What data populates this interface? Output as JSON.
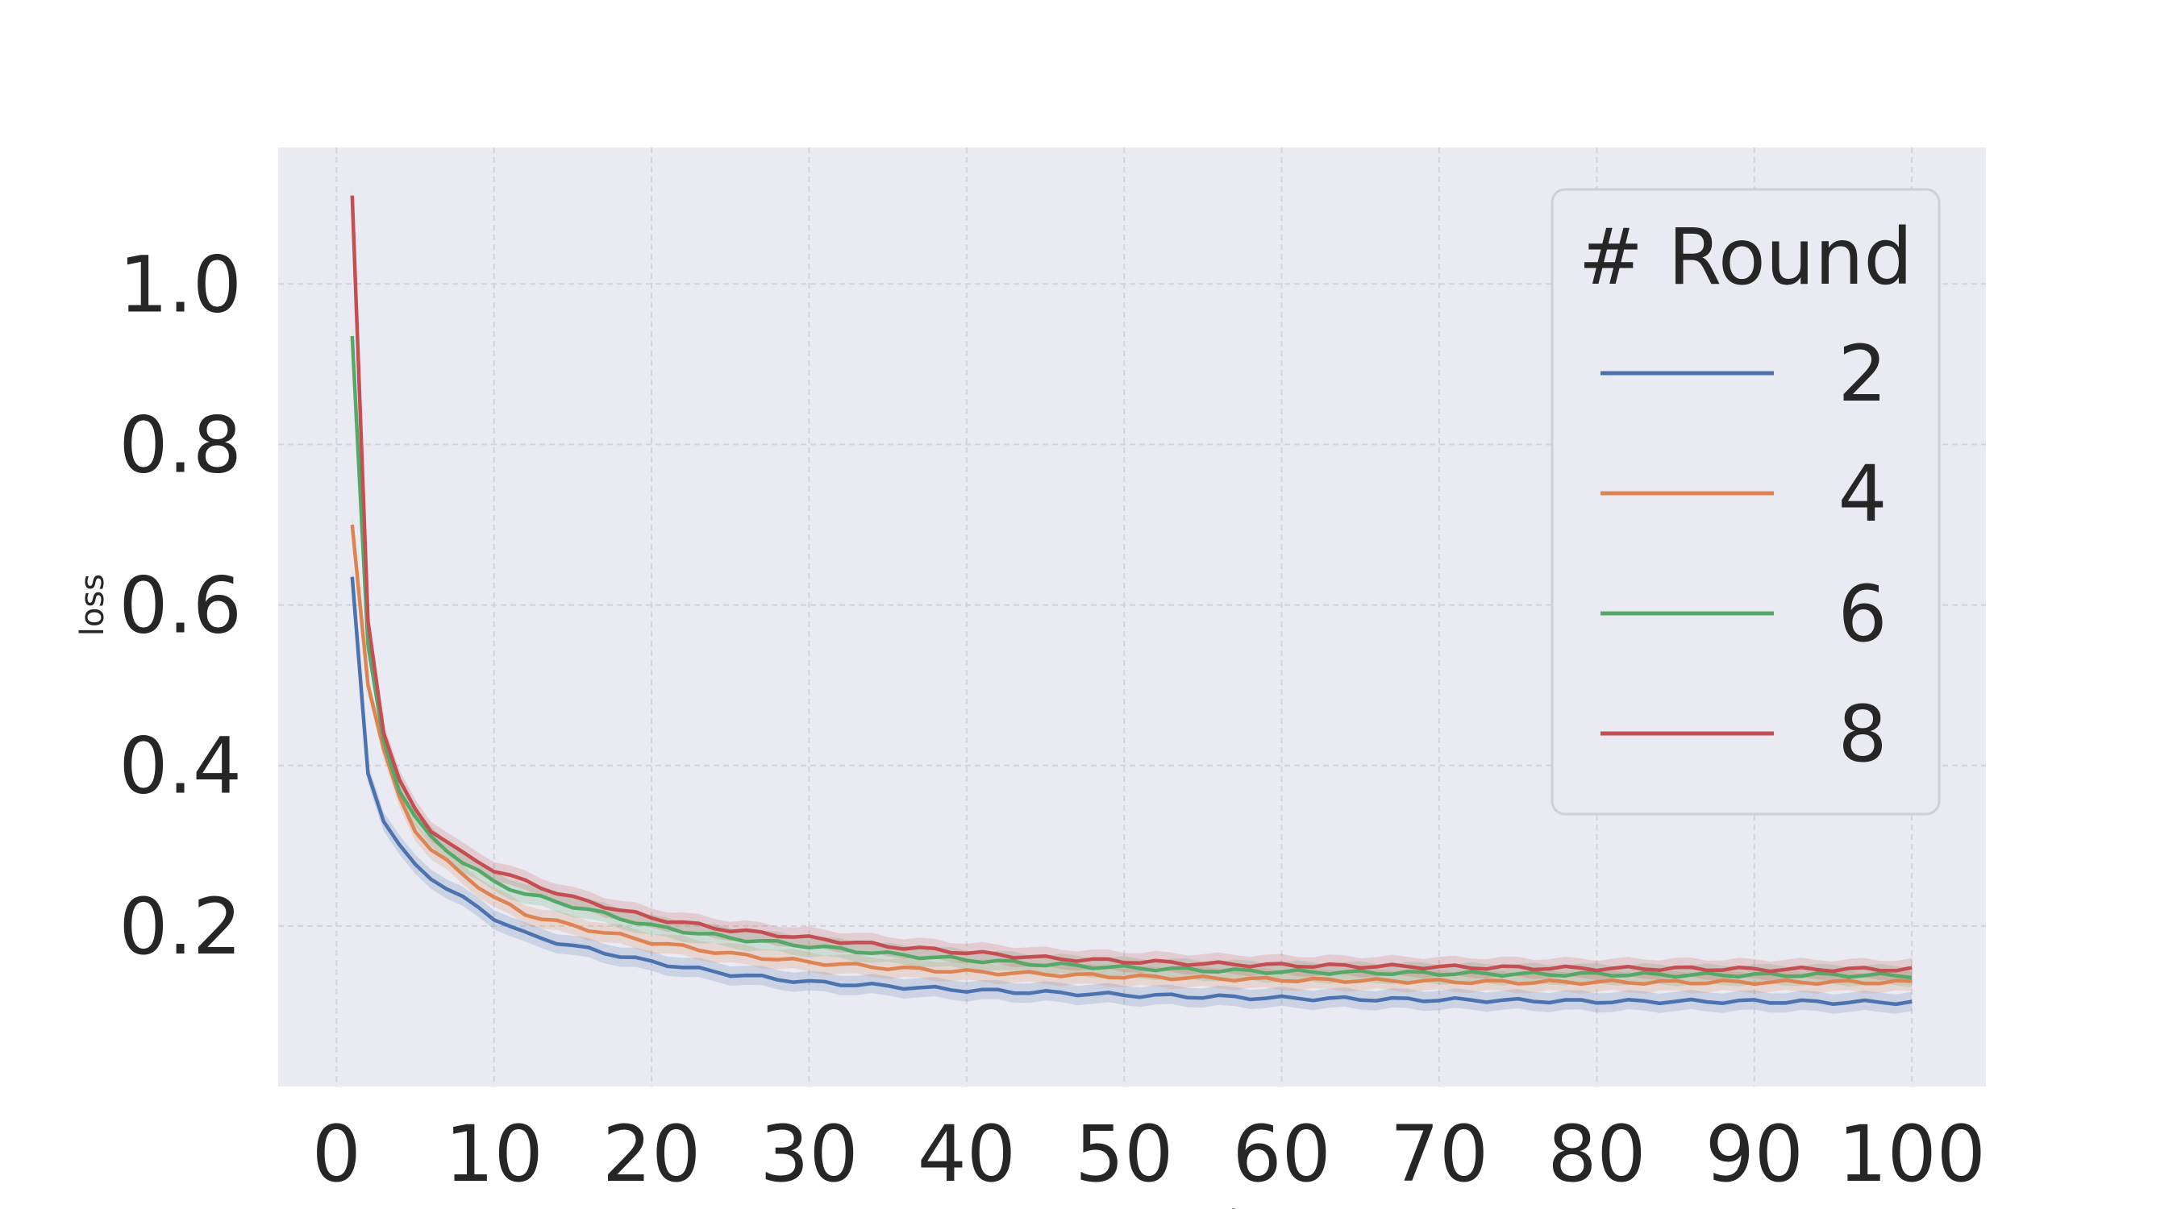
{
  "chart_data": {
    "type": "line",
    "title": "",
    "xlabel": "server_round",
    "ylabel": "loss",
    "xlim": [
      -3.7,
      104.7
    ],
    "ylim": [
      0.0,
      1.17
    ],
    "xticks": [
      0,
      10,
      20,
      30,
      40,
      50,
      60,
      70,
      80,
      90,
      100
    ],
    "xtick_labels": [
      "0",
      "10",
      "20",
      "30",
      "40",
      "50",
      "60",
      "70",
      "80",
      "90",
      "100"
    ],
    "yticks": [
      0.2,
      0.4,
      0.6,
      0.8,
      1.0
    ],
    "ytick_labels": [
      "0.2",
      "0.4",
      "0.6",
      "0.8",
      "1.0"
    ],
    "grid": true,
    "background": "#eaeaf2",
    "legend": {
      "title": "# Round",
      "position": "upper right"
    },
    "x": [
      1,
      2,
      3,
      4,
      5,
      6,
      8,
      10,
      12,
      15,
      20,
      25,
      30,
      35,
      40,
      45,
      50,
      55,
      60,
      65,
      70,
      75,
      80,
      85,
      90,
      95,
      100
    ],
    "series": [
      {
        "name": "2",
        "color": "#4c72b0",
        "values": [
          0.635,
          0.39,
          0.33,
          0.3,
          0.275,
          0.26,
          0.235,
          0.21,
          0.19,
          0.175,
          0.155,
          0.14,
          0.13,
          0.125,
          0.12,
          0.117,
          0.114,
          0.112,
          0.11,
          0.109,
          0.108,
          0.107,
          0.106,
          0.106,
          0.106,
          0.105,
          0.105
        ]
      },
      {
        "name": "4",
        "color": "#dd8452",
        "values": [
          0.7,
          0.5,
          0.42,
          0.36,
          0.32,
          0.295,
          0.265,
          0.235,
          0.215,
          0.2,
          0.18,
          0.165,
          0.155,
          0.148,
          0.143,
          0.14,
          0.137,
          0.135,
          0.133,
          0.132,
          0.131,
          0.13,
          0.13,
          0.13,
          0.13,
          0.13,
          0.13
        ]
      },
      {
        "name": "6",
        "color": "#55a868",
        "values": [
          0.935,
          0.55,
          0.43,
          0.37,
          0.335,
          0.31,
          0.28,
          0.255,
          0.24,
          0.225,
          0.2,
          0.185,
          0.175,
          0.165,
          0.158,
          0.152,
          0.148,
          0.145,
          0.143,
          0.142,
          0.141,
          0.14,
          0.14,
          0.139,
          0.139,
          0.139,
          0.138
        ]
      },
      {
        "name": "8",
        "color": "#c44e52",
        "values": [
          1.11,
          0.58,
          0.44,
          0.38,
          0.345,
          0.32,
          0.29,
          0.27,
          0.255,
          0.235,
          0.21,
          0.195,
          0.185,
          0.175,
          0.167,
          0.16,
          0.156,
          0.153,
          0.151,
          0.15,
          0.149,
          0.148,
          0.147,
          0.147,
          0.146,
          0.146,
          0.146
        ]
      }
    ]
  }
}
